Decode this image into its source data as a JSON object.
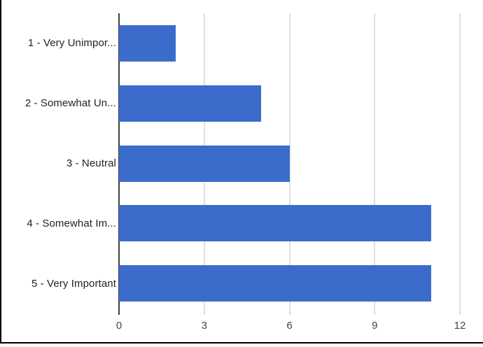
{
  "chart_data": {
    "type": "bar",
    "orientation": "horizontal",
    "title": "",
    "xlabel": "",
    "ylabel": "",
    "categories": [
      "1 - Very Unimpor...",
      "2 - Somewhat Un...",
      "3 - Neutral",
      "4 - Somewhat Im...",
      "5 - Very Important"
    ],
    "values": [
      2,
      5,
      6,
      11,
      11
    ],
    "xlim": [
      0,
      12
    ],
    "x_ticks": [
      "0",
      "3",
      "6",
      "9",
      "12"
    ],
    "x_tick_values": [
      0,
      3,
      6,
      9,
      12
    ],
    "grid": true,
    "legend": "none",
    "colors": {
      "bar": "#3c6ccb",
      "gridline": "#e0e0e0",
      "axis_line": "#424242",
      "category_label": "#222222",
      "tick_label": "#444444",
      "frame_border": "#000000",
      "background": "#ffffff"
    }
  }
}
